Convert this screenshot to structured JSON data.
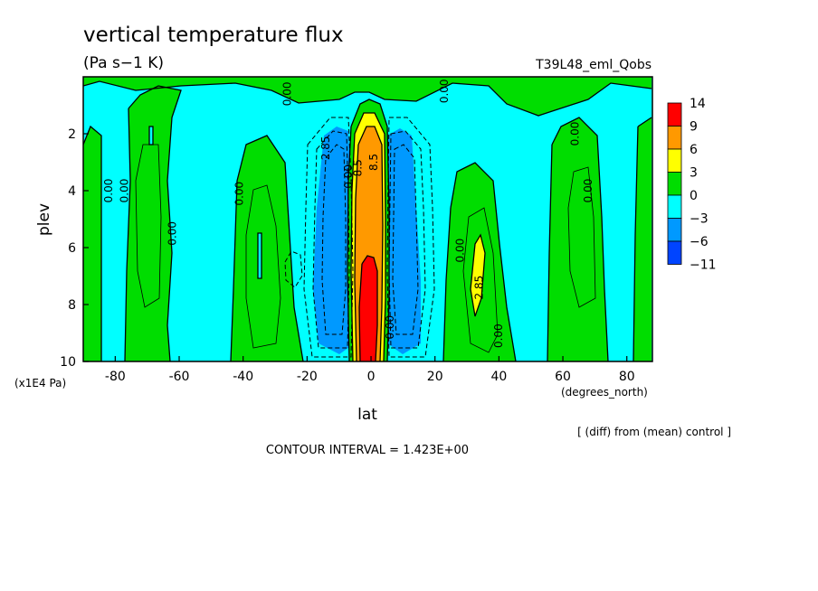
{
  "chart_data": {
    "type": "heatmap",
    "title": "vertical temperature flux",
    "units": "(Pa s−1 K)",
    "run_label": "T39L48_eml_Qobs",
    "xlabel": "lat",
    "xunits": "(degrees_north)",
    "ylabel": "plev",
    "yunits": "(x1E4 Pa)",
    "xlim": [
      -90,
      88
    ],
    "ylim": [
      0,
      10
    ],
    "y_inverted": true,
    "x_ticks": [
      -80,
      -60,
      -40,
      -20,
      0,
      20,
      40,
      60,
      80
    ],
    "y_ticks": [
      2,
      4,
      6,
      8,
      10
    ],
    "note": "[ (diff) from (mean) control ]",
    "contour_interval": "CONTOUR INTERVAL = 1.423E+00",
    "colorbar": {
      "labels": [
        "14",
        "9",
        "6",
        "3",
        "0",
        "−3",
        "−6",
        "−11"
      ],
      "colors": [
        "#ff0000",
        "#ff9900",
        "#ffff00",
        "#00dd00",
        "#00ffff",
        "#0099ff",
        "#0044ff"
      ]
    },
    "contour_labels": [
      {
        "text": "0.00",
        "lat": -81,
        "plev": 4.0
      },
      {
        "text": "0.00",
        "lat": -76,
        "plev": 4.0
      },
      {
        "text": "0.00",
        "lat": -61,
        "plev": 5.5
      },
      {
        "text": "0.00",
        "lat": -40,
        "plev": 4.1
      },
      {
        "text": "0.00",
        "lat": -25,
        "plev": 0.6
      },
      {
        "text": "2.85",
        "lat": -13,
        "plev": 2.5
      },
      {
        "text": "0.00",
        "lat": -6,
        "plev": 3.5
      },
      {
        "text": "8.5",
        "lat": -3,
        "plev": 3.2
      },
      {
        "text": "8.5",
        "lat": 2,
        "plev": 3.0
      },
      {
        "text": "0.00",
        "lat": 7,
        "plev": 8.8
      },
      {
        "text": "0.00",
        "lat": 24,
        "plev": 0.5
      },
      {
        "text": "0.00",
        "lat": 29,
        "plev": 6.1
      },
      {
        "text": "2.85",
        "lat": 35,
        "plev": 7.4
      },
      {
        "text": "0.00",
        "lat": 41,
        "plev": 9.1
      },
      {
        "text": "0.00",
        "lat": 65,
        "plev": 2.0
      },
      {
        "text": "0.00",
        "lat": 69,
        "plev": 4.0
      }
    ]
  }
}
